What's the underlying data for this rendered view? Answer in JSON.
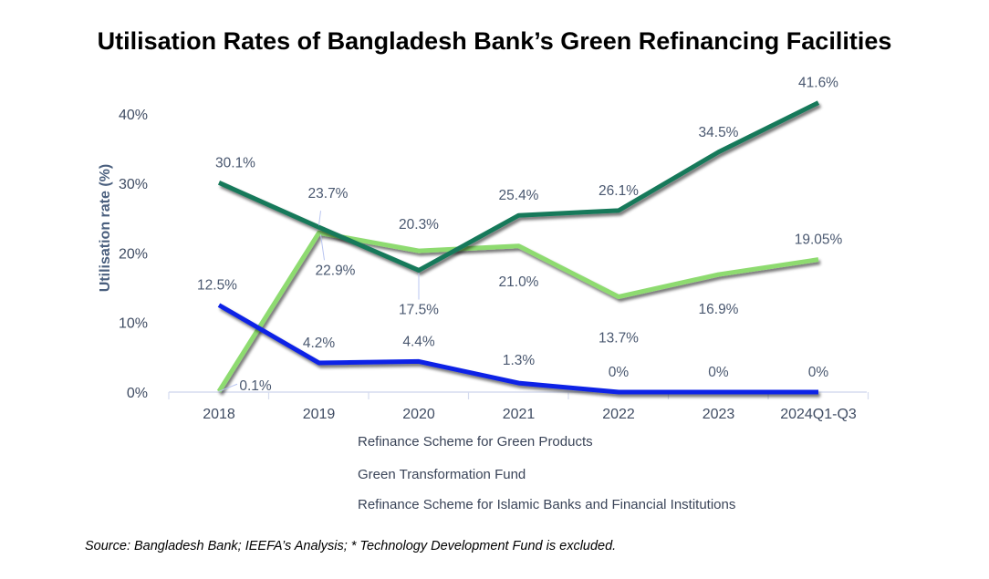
{
  "title": "Utilisation Rates of Bangladesh Bank’s Green Refinancing Facilities",
  "source": "Source: Bangladesh Bank; IEEFA’s Analysis; * Technology Development Fund is excluded.",
  "chart_data": {
    "type": "line",
    "title": "Utilisation Rates of Bangladesh Bank’s Green Refinancing Facilities",
    "xlabel": "",
    "ylabel": "Utilisation rate (%)",
    "categories": [
      "2018",
      "2019",
      "2020",
      "2021",
      "2022",
      "2023",
      "2024Q1-Q3"
    ],
    "yticks": [
      "0%",
      "10%",
      "20%",
      "30%",
      "40%"
    ],
    "ytick_values": [
      0,
      10,
      20,
      30,
      40
    ],
    "ylim": [
      0,
      42
    ],
    "grid": false,
    "legend": "bottom",
    "series": [
      {
        "name": "Refinance Scheme for Green Products",
        "color": "#17795a",
        "values": [
          30.1,
          23.7,
          17.5,
          25.4,
          26.1,
          34.5,
          41.6
        ],
        "labels": [
          "30.1%",
          "23.7%",
          "17.5%",
          "25.4%",
          "26.1%",
          "34.5%",
          "41.6%"
        ]
      },
      {
        "name": "Green Transformation Fund",
        "color": "#8edb70",
        "values": [
          0.1,
          22.9,
          20.3,
          21.0,
          13.7,
          16.9,
          19.05
        ],
        "labels": [
          "0.1%",
          "22.9%",
          "20.3%",
          "21.0%",
          "13.7%",
          "16.9%",
          "19.05%"
        ]
      },
      {
        "name": "Refinance Scheme for Islamic Banks and Financial Institutions",
        "color": "#0b22e6",
        "values": [
          12.5,
          4.2,
          4.4,
          1.3,
          0,
          0,
          0
        ],
        "labels": [
          "12.5%",
          "4.2%",
          "4.4%",
          "1.3%",
          "0%",
          "0%",
          "0%"
        ]
      }
    ]
  }
}
